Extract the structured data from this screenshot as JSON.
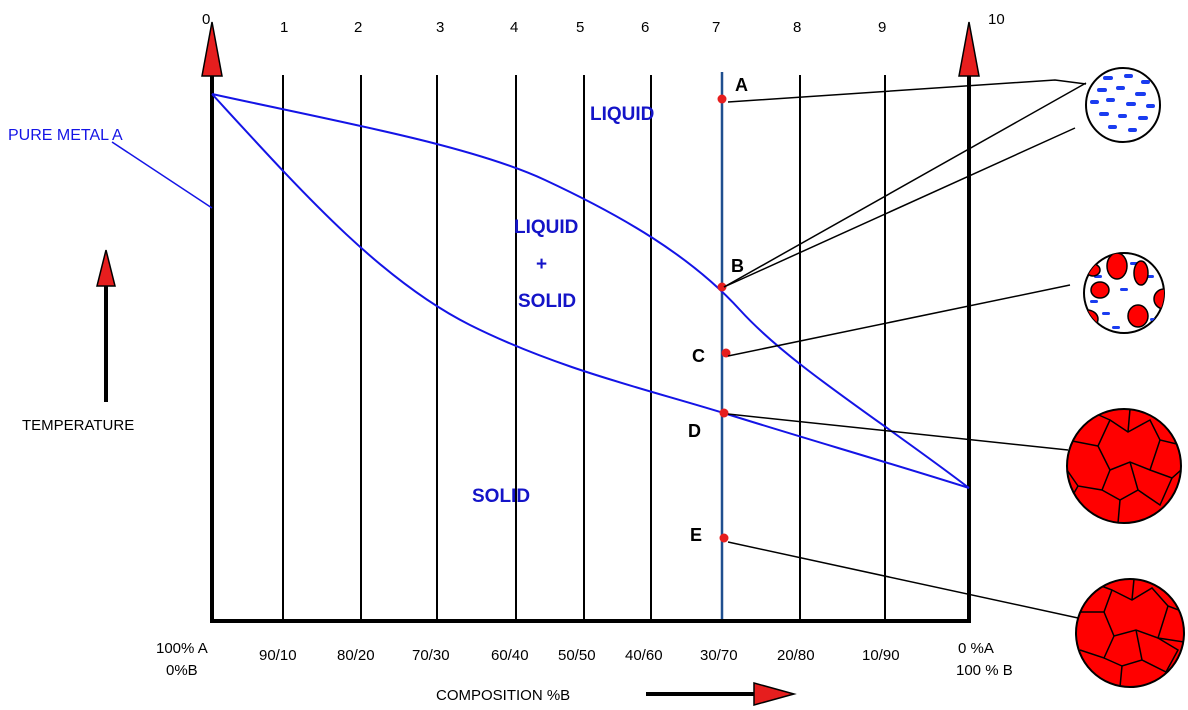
{
  "top_numbers": [
    "0",
    "1",
    "2",
    "3",
    "4",
    "5",
    "6",
    "7",
    "8",
    "9",
    "10"
  ],
  "compositions": [
    "100% A",
    "90/10",
    "80/20",
    "70/30",
    "60/40",
    "50/50",
    "40/60",
    "30/70",
    "20/80",
    "10/90",
    "0 %A"
  ],
  "compositions_line2": {
    "left": "0%B",
    "right": "100 % B"
  },
  "labels": {
    "pure_metal": "PURE METAL A",
    "temperature": "TEMPERATURE",
    "composition": "COMPOSITION %B"
  },
  "regions": {
    "liquid": "LIQUID",
    "mixed_top": "LIQUID",
    "plus": "+",
    "mixed_bottom": "SOLID",
    "solid": "SOLID"
  },
  "points": [
    "A",
    "B",
    "C",
    "D",
    "E"
  ],
  "colors": {
    "curve": "#1414e6",
    "alloy_line": "#1f4f8f",
    "marker": "#e61e1e",
    "grain": "#ff0000"
  },
  "microstructures": [
    "liquid-only",
    "liquid-plus-solid-grains",
    "solid-grains",
    "solid-grains"
  ]
}
